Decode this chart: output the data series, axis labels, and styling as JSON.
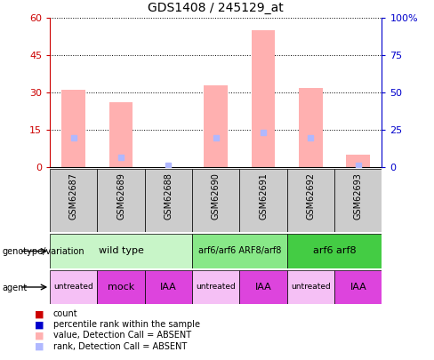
{
  "title": "GDS1408 / 245129_at",
  "samples": [
    "GSM62687",
    "GSM62689",
    "GSM62688",
    "GSM62690",
    "GSM62691",
    "GSM62692",
    "GSM62693"
  ],
  "pink_bars": [
    31,
    26,
    0,
    33,
    55,
    32,
    5
  ],
  "blue_marks": [
    12,
    4,
    1,
    12,
    14,
    12,
    1
  ],
  "ylim_left": [
    0,
    60
  ],
  "ylim_right": [
    0,
    100
  ],
  "yticks_left": [
    0,
    15,
    30,
    45,
    60
  ],
  "yticks_right": [
    0,
    25,
    50,
    75,
    100
  ],
  "ytick_labels_left": [
    "0",
    "15",
    "30",
    "45",
    "60"
  ],
  "ytick_labels_right": [
    "0",
    "25",
    "50",
    "75",
    "100%"
  ],
  "genotype_groups": [
    {
      "label": "wild type",
      "cols": [
        0,
        1,
        2
      ],
      "color": "#c8f5c8"
    },
    {
      "label": "arf6/arf6 ARF8/arf8",
      "cols": [
        3,
        4
      ],
      "color": "#88e888"
    },
    {
      "label": "arf6 arf8",
      "cols": [
        5,
        6
      ],
      "color": "#44cc44"
    }
  ],
  "agent_groups": [
    {
      "label": "untreated",
      "col": 0,
      "color": "#f5c0f5"
    },
    {
      "label": "mock",
      "col": 1,
      "color": "#dd44dd"
    },
    {
      "label": "IAA",
      "col": 2,
      "color": "#dd44dd"
    },
    {
      "label": "untreated",
      "col": 3,
      "color": "#f5c0f5"
    },
    {
      "label": "IAA",
      "col": 4,
      "color": "#dd44dd"
    },
    {
      "label": "untreated",
      "col": 5,
      "color": "#f5c0f5"
    },
    {
      "label": "IAA",
      "col": 6,
      "color": "#dd44dd"
    }
  ],
  "legend_items": [
    {
      "label": "count",
      "color": "#cc0000"
    },
    {
      "label": "percentile rank within the sample",
      "color": "#0000cc"
    },
    {
      "label": "value, Detection Call = ABSENT",
      "color": "#ffb0b0"
    },
    {
      "label": "rank, Detection Call = ABSENT",
      "color": "#b0b8ff"
    }
  ],
  "pink_color": "#ffb0b0",
  "blue_mark_color": "#b0b8ff",
  "left_axis_color": "#cc0000",
  "right_axis_color": "#0000cc",
  "sample_box_color": "#cccccc"
}
